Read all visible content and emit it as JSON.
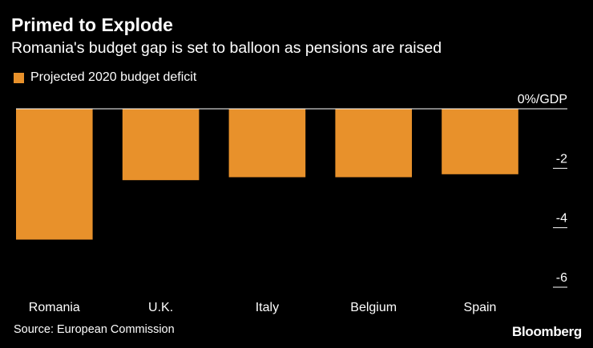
{
  "chart_data": {
    "type": "bar",
    "title": "Primed to Explode",
    "subtitle": "Romania's budget gap is set to balloon as pensions are raised",
    "legend": [
      "Projected 2020 budget deficit"
    ],
    "categories": [
      "Romania",
      "U.K.",
      "Italy",
      "Belgium",
      "Spain"
    ],
    "series": [
      {
        "name": "Projected 2020 budget deficit",
        "values": [
          -4.4,
          -2.4,
          -2.3,
          -2.3,
          -2.2
        ]
      }
    ],
    "ylim": [
      -6,
      0
    ],
    "yticks": [
      0,
      -2,
      -4,
      -6
    ],
    "ytick_labels": [
      "0%/GDP",
      "-2",
      "-4",
      "-6"
    ],
    "colors": {
      "bar": "#E8912B",
      "background": "#000000",
      "text": "#FFFFFF",
      "axis": "#FFFFFF"
    }
  },
  "source": "Source: European Commission",
  "brand": "Bloomberg"
}
